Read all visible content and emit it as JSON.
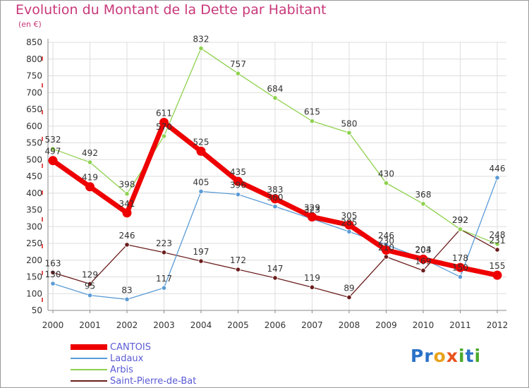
{
  "title": "Evolution du Montant de la Dette par Habitant",
  "unit_label": "(en €)",
  "logo": {
    "text": "Proxiti",
    "letters": [
      {
        "ch": "P",
        "color": "#2a72c8"
      },
      {
        "ch": "r",
        "color": "#2a72c8"
      },
      {
        "ch": "o",
        "color": "#e8a21c"
      },
      {
        "ch": "x",
        "color": "#e8521c"
      },
      {
        "ch": "i",
        "color": "#4caa2c"
      },
      {
        "ch": "t",
        "color": "#2a72c8"
      },
      {
        "ch": "i",
        "color": "#4caa2c"
      }
    ]
  },
  "chart_data": {
    "type": "line",
    "title": "Evolution du Montant de la Dette par Habitant",
    "ylabel": "(en €)",
    "xlabel": "",
    "x": [
      2000,
      2001,
      2002,
      2003,
      2004,
      2005,
      2006,
      2007,
      2008,
      2009,
      2010,
      2011,
      2012
    ],
    "ylim": [
      50,
      850
    ],
    "yticks": [
      50,
      100,
      150,
      200,
      250,
      300,
      350,
      400,
      450,
      500,
      550,
      600,
      650,
      700,
      750,
      800,
      850
    ],
    "grid": true,
    "legend_position": "bottom-left",
    "series": [
      {
        "name": "Saint-Pierre-de-Bat",
        "color": "#6b1d1d",
        "values": [
          163,
          129,
          246,
          223,
          197,
          172,
          147,
          119,
          89,
          210,
          169,
          292,
          231
        ]
      },
      {
        "name": "Arbis",
        "color": "#8fd14f",
        "values": [
          532,
          492,
          398,
          570,
          832,
          757,
          684,
          615,
          580,
          430,
          368,
          292,
          248
        ]
      },
      {
        "name": "Ladaux",
        "color": "#5b9bd5",
        "values": [
          130,
          95,
          83,
          117,
          405,
          396,
          360,
          323,
          285,
          246,
          204,
          150,
          446
        ]
      },
      {
        "name": "CANTOIS",
        "color": "#ee0000",
        "values": [
          497,
          419,
          341,
          611,
          525,
          435,
          383,
          329,
          305,
          230,
          203,
          178,
          155
        ]
      }
    ],
    "data_labels": [
      {
        "series": "CANTOIS",
        "text": [
          "497",
          "419",
          "341",
          "611",
          "525",
          "435",
          "383",
          "329",
          "305",
          "230",
          "203",
          "178",
          "155"
        ]
      },
      {
        "series": "Ladaux",
        "text": [
          "130",
          "95",
          "83",
          "117",
          "405",
          "396",
          "360",
          "323",
          "285",
          "246",
          "204",
          "150",
          "446"
        ]
      },
      {
        "series": "Arbis",
        "text": [
          "532",
          "492",
          "398",
          "570",
          "832",
          "757",
          "684",
          "615",
          "580",
          "430",
          "368",
          "292",
          "248"
        ]
      },
      {
        "series": "Saint-Pierre-de-Bat",
        "text": [
          "163",
          "129",
          "246",
          "223",
          "197",
          "172",
          "147",
          "119",
          "89",
          "210",
          "169",
          "292",
          "231"
        ]
      }
    ]
  },
  "legend": [
    {
      "label": "CANTOIS",
      "color": "#ee0000",
      "thick": true
    },
    {
      "label": "Ladaux",
      "color": "#5b9bd5",
      "thick": false
    },
    {
      "label": "Arbis",
      "color": "#8fd14f",
      "thick": false
    },
    {
      "label": "Saint-Pierre-de-Bat",
      "color": "#6b1d1d",
      "thick": false
    }
  ]
}
